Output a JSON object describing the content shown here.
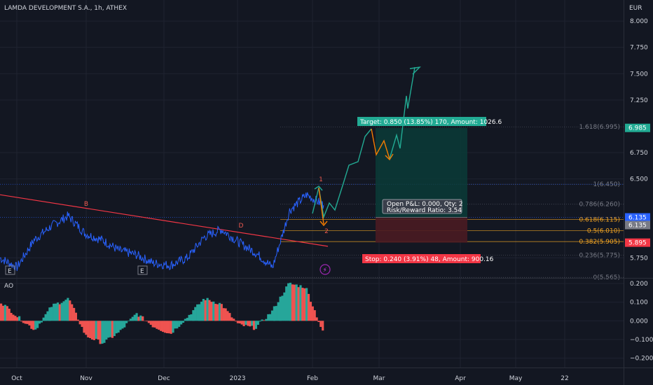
{
  "header": {
    "title": "LAMDA DEVELOPMENT S.A., 1h, ATHEX",
    "currency": "EUR"
  },
  "indicator": {
    "name": "AO"
  },
  "colors": {
    "background": "#131722",
    "grid": "#1f2330",
    "price_line": "#2962ff",
    "trend_line": "#f23645",
    "wave_bull": "#22ab94",
    "wave_bear": "#f57c00",
    "ao_up": "#26a69a",
    "ao_down": "#ef5350",
    "target_zone": "#0b3b37",
    "stop_zone": "#4a1b22",
    "fib": "#787b86",
    "fib_highlight": "#f5a623"
  },
  "price_axis": {
    "min": 5.56,
    "max": 8.2,
    "ticks": [
      "8.000",
      "7.750",
      "7.500",
      "7.250",
      "6.750",
      "6.500",
      "5.750"
    ],
    "badges": [
      {
        "value": 6.985,
        "text": "6.985",
        "color": "#22ab94",
        "name": "target-price-badge"
      },
      {
        "value": 6.135,
        "text": "6.135",
        "color": "#2962ff",
        "name": "current-price-badge"
      },
      {
        "value": 6.135,
        "text": "6.135",
        "color": "#787b86",
        "name": "entry-price-badge"
      },
      {
        "value": 5.895,
        "text": "5.895",
        "color": "#f23645",
        "name": "stop-price-badge"
      }
    ]
  },
  "ao_axis": {
    "min": -0.25,
    "max": 0.23,
    "ticks": [
      "0.200",
      "0.100",
      "0.000",
      "−0.100",
      "−0.200"
    ]
  },
  "time_axis": {
    "labels": [
      "Oct",
      "Nov",
      "Dec",
      "2023",
      "Feb",
      "Mar",
      "Apr",
      "May",
      "22"
    ]
  },
  "fib_levels": [
    {
      "value": 6.995,
      "label": "1.618(6.995)",
      "highlight": false
    },
    {
      "value": 6.45,
      "label": "1(6.450)",
      "highlight": false
    },
    {
      "value": 6.26,
      "label": "0.786(6.260)",
      "highlight": false
    },
    {
      "value": 6.115,
      "label": "0.618(6.115)",
      "highlight": true
    },
    {
      "value": 6.01,
      "label": "0.5(6.010)",
      "highlight": true
    },
    {
      "value": 5.905,
      "label": "0.382(5.905)",
      "highlight": true
    },
    {
      "value": 5.775,
      "label": "0.236(5.775)",
      "highlight": false
    },
    {
      "value": 5.565,
      "label": "0(5.565)",
      "highlight": false
    }
  ],
  "position": {
    "entry": 6.135,
    "target": 6.985,
    "stop": 5.895,
    "target_label": "Target: 0.850 (13.85%) 170, Amount: 1026.6",
    "stop_label": "Stop: 0.240 (3.91%) 48, Amount: 900.16",
    "pnl_label": "Open P&L: 0.000, Qty: 2",
    "rr_label": "Risk/Reward Ratio: 3.54"
  },
  "annotations": {
    "B": "B",
    "D": "D",
    "wave1": "1",
    "wave2": "2",
    "E": "E"
  },
  "chart_data": {
    "type": "line",
    "title": "LAMDA DEVELOPMENT S.A., 1h, ATHEX",
    "series": [
      {
        "name": "",
        "x": [
          "2022-09-26",
          "2022-10-03",
          "2022-10-10",
          "2022-10-17",
          "2022-10-24",
          "2022-10-31",
          "2022-11-07",
          "2022-11-14",
          "2022-11-21",
          "2022-11-28",
          "2022-12-05",
          "2022-12-12",
          "2022-12-19",
          "2022-12-26",
          "2023-01-02",
          "2023-01-09",
          "2023-01-16",
          "2023-01-23",
          "2023-01-30",
          "2023-02-03"
        ],
        "values": [
          5.75,
          5.66,
          5.92,
          6.05,
          6.15,
          5.98,
          5.92,
          5.82,
          5.78,
          5.7,
          5.68,
          5.75,
          5.95,
          6.02,
          5.9,
          5.8,
          5.66,
          6.2,
          6.35,
          6.25
        ]
      }
    ],
    "ao_values": [
      0.1,
      0.02,
      -0.05,
      0.08,
      0.12,
      -0.08,
      -0.12,
      -0.06,
      0.04,
      -0.03,
      -0.07,
      0.02,
      0.12,
      0.09,
      -0.02,
      -0.04,
      0.05,
      0.2,
      0.18,
      -0.06
    ],
    "ylim": [
      5.56,
      8.2
    ],
    "ao_ylim": [
      -0.25,
      0.23
    ],
    "grid": true,
    "legend": "none"
  }
}
